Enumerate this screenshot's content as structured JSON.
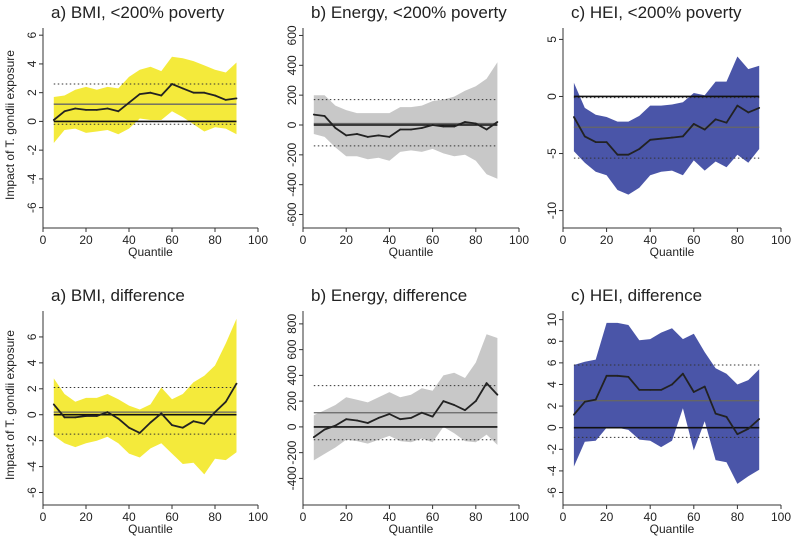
{
  "figure": {
    "ylabel": "Impact of T. gondii exposure",
    "colors": {
      "yellow": "#f4ea3b",
      "gray": "#c8c8c8",
      "blue": "#4a55a8",
      "line": "#222222"
    }
  },
  "chart_data": [
    {
      "id": "bmi-poverty",
      "type": "line",
      "title": "a) BMI, <200% poverty",
      "xlabel": "Quantile",
      "ylabel": "Impact of T. gondii exposure",
      "xlim": [
        0,
        100
      ],
      "xticks": [
        0,
        20,
        40,
        60,
        80,
        100
      ],
      "ylim": [
        -7,
        6.5
      ],
      "yticks": [
        -6,
        -4,
        -2,
        0,
        2,
        4,
        6
      ],
      "yticklabels": [
        "-6",
        "-4",
        "-2",
        "0",
        "2",
        "4",
        "6"
      ],
      "band_color": "yellow",
      "x": [
        5,
        10,
        15,
        20,
        25,
        30,
        35,
        40,
        45,
        50,
        55,
        60,
        65,
        70,
        75,
        80,
        85,
        90
      ],
      "estimate": [
        0.1,
        0.7,
        0.9,
        0.8,
        0.8,
        0.9,
        0.7,
        1.3,
        1.9,
        2.0,
        1.8,
        2.6,
        2.3,
        2.0,
        2.0,
        1.8,
        1.5,
        1.6
      ],
      "ci_upper": [
        1.7,
        1.8,
        2.2,
        2.4,
        2.2,
        2.4,
        2.3,
        3.1,
        3.6,
        3.8,
        3.5,
        4.5,
        4.4,
        4.2,
        3.9,
        3.6,
        3.4,
        4.1
      ],
      "ci_lower": [
        -1.5,
        -0.6,
        -0.5,
        -0.8,
        -0.7,
        -0.6,
        -0.9,
        -0.5,
        0.2,
        0.1,
        0.1,
        0.7,
        0.3,
        -0.2,
        -0.7,
        -0.4,
        -0.5,
        -0.9
      ],
      "ols_estimate": 1.2,
      "ols_ci": [
        -0.2,
        2.6
      ]
    },
    {
      "id": "energy-poverty",
      "type": "line",
      "title": "b) Energy, <200% poverty",
      "xlabel": "Quantile",
      "ylabel": "",
      "xlim": [
        0,
        100
      ],
      "xticks": [
        0,
        20,
        40,
        60,
        80,
        100
      ],
      "ylim": [
        -650,
        650
      ],
      "yticks": [
        -600,
        -400,
        -200,
        0,
        200,
        400,
        600
      ],
      "yticklabels": [
        "-600",
        "-400",
        "-200",
        "0",
        "200",
        "400",
        "600"
      ],
      "band_color": "gray",
      "x": [
        5,
        10,
        15,
        20,
        25,
        30,
        35,
        40,
        45,
        50,
        55,
        60,
        65,
        70,
        75,
        80,
        85,
        90
      ],
      "estimate": [
        70,
        60,
        -20,
        -70,
        -60,
        -80,
        -70,
        -80,
        -30,
        -30,
        -20,
        0,
        -10,
        -10,
        20,
        10,
        -30,
        20
      ],
      "ci_upper": [
        200,
        200,
        130,
        100,
        80,
        80,
        80,
        80,
        120,
        120,
        130,
        160,
        170,
        190,
        230,
        260,
        310,
        420
      ],
      "ci_lower": [
        -60,
        -80,
        -150,
        -210,
        -210,
        -230,
        -220,
        -240,
        -180,
        -170,
        -180,
        -160,
        -190,
        -210,
        -200,
        -240,
        -330,
        -360
      ],
      "ols_estimate": 10,
      "ols_ci": [
        -140,
        170
      ]
    },
    {
      "id": "hei-poverty",
      "type": "line",
      "title": "c) HEI, <200% poverty",
      "xlabel": "Quantile",
      "ylabel": "",
      "xlim": [
        0,
        100
      ],
      "xticks": [
        0,
        20,
        40,
        60,
        80,
        100
      ],
      "ylim": [
        -11,
        6
      ],
      "yticks": [
        -10,
        -5,
        0,
        5
      ],
      "yticklabels": [
        "-10",
        "-5",
        "0",
        "5"
      ],
      "band_color": "blue",
      "x": [
        5,
        10,
        15,
        20,
        25,
        30,
        35,
        40,
        45,
        50,
        55,
        60,
        65,
        70,
        75,
        80,
        85,
        90
      ],
      "estimate": [
        -1.8,
        -3.5,
        -4.0,
        -4.0,
        -5.1,
        -5.1,
        -4.6,
        -3.8,
        -3.7,
        -3.6,
        -3.5,
        -2.4,
        -2.9,
        -2.0,
        -2.3,
        -0.8,
        -1.4,
        -1.0
      ],
      "ci_upper": [
        1.2,
        -1.0,
        -1.6,
        -1.8,
        -2.2,
        -2.2,
        -1.7,
        -0.8,
        -0.8,
        -0.7,
        -0.5,
        0.3,
        0.1,
        1.3,
        1.3,
        3.5,
        2.4,
        2.7
      ],
      "ci_lower": [
        -4.8,
        -5.8,
        -6.6,
        -6.9,
        -8.2,
        -8.6,
        -8.0,
        -6.9,
        -6.6,
        -6.5,
        -6.9,
        -5.6,
        -6.5,
        -5.7,
        -6.2,
        -5.1,
        -5.8,
        -4.6
      ],
      "ols_estimate": -2.7,
      "ols_ci": [
        -5.4,
        -0.1
      ]
    },
    {
      "id": "bmi-difference",
      "type": "line",
      "title": "a) BMI, difference",
      "xlabel": "Quantile",
      "ylabel": "Impact of T. gondii exposure",
      "xlim": [
        0,
        100
      ],
      "xticks": [
        0,
        20,
        40,
        60,
        80,
        100
      ],
      "ylim": [
        -6.5,
        8
      ],
      "yticks": [
        -6,
        -4,
        -2,
        0,
        2,
        4,
        6
      ],
      "yticklabels": [
        "-6",
        "-4",
        "-2",
        "0",
        "2",
        "4",
        "6"
      ],
      "band_color": "yellow",
      "x": [
        5,
        10,
        15,
        20,
        25,
        30,
        35,
        40,
        45,
        50,
        55,
        60,
        65,
        70,
        75,
        80,
        85,
        90
      ],
      "estimate": [
        0.8,
        -0.2,
        -0.2,
        -0.1,
        -0.1,
        0.2,
        -0.3,
        -1.0,
        -1.4,
        -0.6,
        0.1,
        -0.8,
        -1.0,
        -0.5,
        -0.7,
        0.2,
        1.0,
        2.4
      ],
      "ci_upper": [
        2.8,
        1.6,
        1.0,
        1.3,
        1.3,
        1.6,
        1.2,
        0.7,
        0.4,
        0.8,
        2.1,
        1.2,
        1.6,
        2.5,
        3.0,
        3.8,
        5.5,
        7.4
      ],
      "ci_lower": [
        -1.6,
        -2.2,
        -2.5,
        -2.2,
        -2.0,
        -1.7,
        -2.2,
        -3.0,
        -3.3,
        -2.6,
        -2.2,
        -3.0,
        -3.8,
        -3.7,
        -4.6,
        -3.4,
        -3.5,
        -2.9
      ],
      "ols_estimate": 0.2,
      "ols_ci": [
        -1.5,
        2.1
      ]
    },
    {
      "id": "energy-difference",
      "type": "line",
      "title": "b) Energy, difference",
      "xlabel": "Quantile",
      "ylabel": "",
      "xlim": [
        0,
        100
      ],
      "xticks": [
        0,
        20,
        40,
        60,
        80,
        100
      ],
      "ylim": [
        -560,
        900
      ],
      "yticks": [
        -400,
        -200,
        0,
        200,
        400,
        600,
        800
      ],
      "yticklabels": [
        "-400",
        "-200",
        "0",
        "200",
        "400",
        "600",
        "800"
      ],
      "band_color": "gray",
      "x": [
        5,
        10,
        15,
        20,
        25,
        30,
        35,
        40,
        45,
        50,
        55,
        60,
        65,
        70,
        75,
        80,
        85,
        90
      ],
      "estimate": [
        -80,
        -20,
        10,
        60,
        50,
        30,
        70,
        100,
        60,
        70,
        110,
        80,
        200,
        170,
        130,
        200,
        340,
        250
      ],
      "ci_upper": [
        90,
        130,
        170,
        230,
        210,
        190,
        230,
        270,
        230,
        250,
        300,
        280,
        400,
        420,
        380,
        500,
        720,
        690
      ],
      "ci_lower": [
        -260,
        -210,
        -160,
        -100,
        -110,
        -130,
        -100,
        -70,
        -110,
        -120,
        -90,
        -120,
        0,
        -50,
        -110,
        -120,
        -60,
        -140
      ],
      "ols_estimate": 110,
      "ols_ci": [
        -100,
        320
      ]
    },
    {
      "id": "hei-difference",
      "type": "line",
      "title": "c) HEI, difference",
      "xlabel": "Quantile",
      "ylabel": "",
      "xlim": [
        0,
        100
      ],
      "xticks": [
        0,
        20,
        40,
        60,
        80,
        100
      ],
      "ylim": [
        -6.6,
        10.8
      ],
      "yticks": [
        -6,
        -4,
        -2,
        0,
        2,
        4,
        6,
        8,
        10
      ],
      "yticklabels": [
        "-6",
        "-4",
        "-2",
        "0",
        "2",
        "4",
        "6",
        "8",
        "10"
      ],
      "band_color": "blue",
      "x": [
        5,
        10,
        15,
        20,
        25,
        30,
        35,
        40,
        45,
        50,
        55,
        60,
        65,
        70,
        75,
        80,
        85,
        90
      ],
      "estimate": [
        1.2,
        2.4,
        2.6,
        4.8,
        4.8,
        4.7,
        3.5,
        3.5,
        3.5,
        4.0,
        5.0,
        3.3,
        3.8,
        1.3,
        1.0,
        -0.6,
        -0.1,
        0.8
      ],
      "ci_upper": [
        5.8,
        6.1,
        6.3,
        9.7,
        9.7,
        9.5,
        8.1,
        8.2,
        8.8,
        9.2,
        8.2,
        8.7,
        7.0,
        5.5,
        5.0,
        4.0,
        4.4,
        5.4
      ],
      "ci_lower": [
        -3.6,
        -1.3,
        -1.2,
        0.0,
        0.0,
        -0.2,
        -1.1,
        -1.2,
        -1.8,
        -1.2,
        1.8,
        -2.1,
        0.6,
        -3.0,
        -3.2,
        -5.2,
        -4.5,
        -3.9
      ],
      "ols_estimate": 2.5,
      "ols_ci": [
        -0.9,
        5.8
      ]
    }
  ]
}
